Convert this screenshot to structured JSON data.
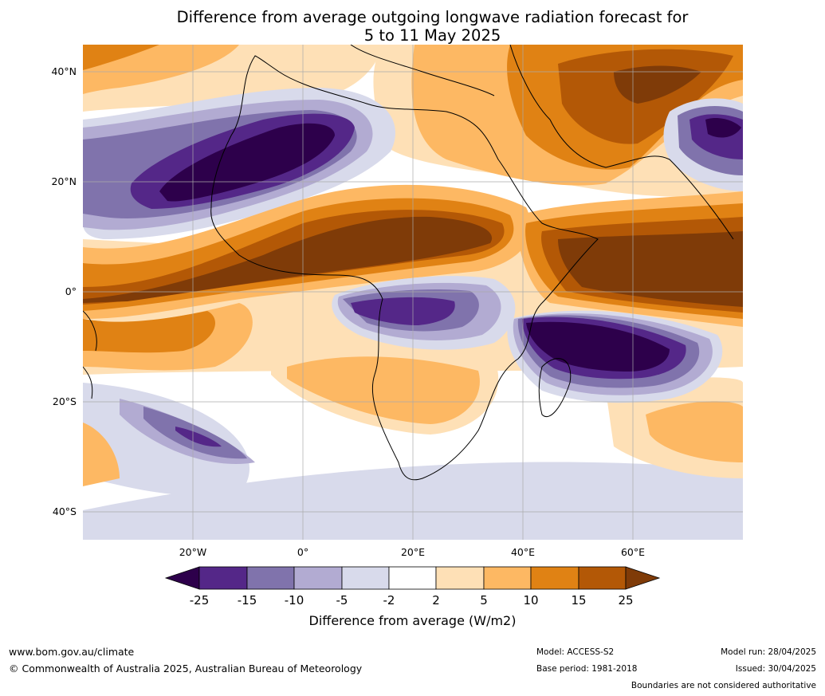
{
  "title_line1": "Difference from average outgoing longwave radiation forecast for",
  "title_line2": "5 to 11 May 2025",
  "map": {
    "lat_labels": [
      "40°N",
      "20°N",
      "0°",
      "20°S",
      "40°S"
    ],
    "lon_labels": [
      "20°W",
      "0°",
      "20°E",
      "40°E",
      "60°E"
    ]
  },
  "colorbar": {
    "title": "Difference from average (W/m2)",
    "ticks": [
      "-25",
      "-15",
      "-10",
      "-5",
      "-2",
      "2",
      "5",
      "10",
      "15",
      "25"
    ],
    "colors": [
      "#2d004b",
      "#542788",
      "#8073ac",
      "#b2abd2",
      "#d8daeb",
      "#ffffff",
      "#fee0b6",
      "#fdb863",
      "#e08214",
      "#b35806",
      "#7f3b08"
    ]
  },
  "footer": {
    "url": "www.bom.gov.au/climate",
    "copyright": "© Commonwealth of Australia 2025, Australian Bureau of Meteorology",
    "model": "Model: ACCESS-S2",
    "base_period": "Base period: 1981-2018",
    "model_run": "Model run: 28/04/2025",
    "issued": "Issued: 30/04/2025",
    "boundaries": "Boundaries are not considered authoritative"
  }
}
